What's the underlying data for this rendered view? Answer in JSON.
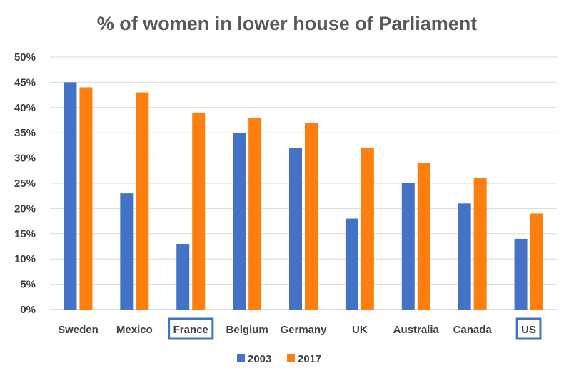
{
  "chart_data": {
    "type": "bar",
    "title": "% of women in lower house of Parliament",
    "xlabel": "",
    "ylabel": "",
    "categories": [
      "Sweden",
      "Mexico",
      "France",
      "Belgium",
      "Germany",
      "UK",
      "Australia",
      "Canada",
      "US"
    ],
    "highlighted_categories": [
      "France",
      "US"
    ],
    "highlight_color": "#4472C4",
    "series": [
      {
        "name": "2003",
        "color": "#4472C4",
        "values": [
          45,
          23,
          13,
          35,
          32,
          18,
          25,
          21,
          14
        ]
      },
      {
        "name": "2017",
        "color": "#FF7F0E",
        "values": [
          44,
          43,
          39,
          38,
          37,
          32,
          29,
          26,
          19
        ]
      }
    ],
    "ylim": [
      0,
      50
    ],
    "yticks": [
      0,
      5,
      10,
      15,
      20,
      25,
      30,
      35,
      40,
      45,
      50
    ],
    "ytick_labels": [
      "0%",
      "5%",
      "10%",
      "15%",
      "20%",
      "25%",
      "30%",
      "35%",
      "40%",
      "45%",
      "50%"
    ],
    "grid": true,
    "legend_position": "bottom"
  }
}
